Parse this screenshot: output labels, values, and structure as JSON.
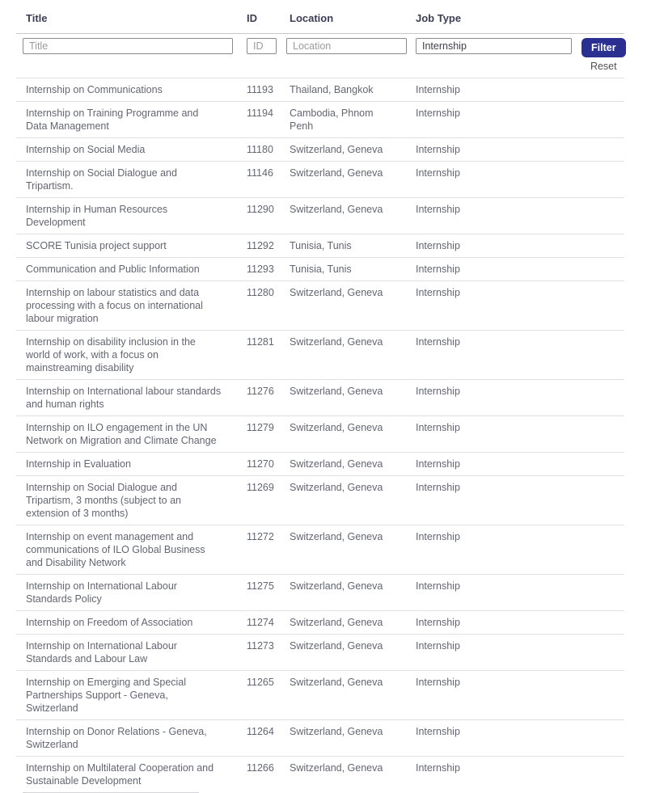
{
  "table": {
    "columns": [
      "Title",
      "ID",
      "Location",
      "Job Type"
    ],
    "filters": {
      "title_placeholder": "Title",
      "id_placeholder": "ID",
      "location_placeholder": "Location",
      "job_type_value": "Internship",
      "filter_button_label": "Filter",
      "reset_label": "Reset"
    },
    "rows": [
      {
        "title": "Internship on Communications",
        "id": "11193",
        "location": "Thailand, Bangkok",
        "job_type": "Internship"
      },
      {
        "title": "Internship on Training Programme and Data Management",
        "id": "11194",
        "location": "Cambodia, Phnom Penh",
        "job_type": "Internship"
      },
      {
        "title": "Internship on Social Media",
        "id": "11180",
        "location": "Switzerland, Geneva",
        "job_type": "Internship"
      },
      {
        "title": "Internship on Social Dialogue and Tripartism.",
        "id": "11146",
        "location": "Switzerland, Geneva",
        "job_type": "Internship"
      },
      {
        "title": "Internship in Human Resources Development",
        "id": "11290",
        "location": "Switzerland, Geneva",
        "job_type": "Internship"
      },
      {
        "title": "SCORE Tunisia project support",
        "id": "11292",
        "location": "Tunisia, Tunis",
        "job_type": "Internship"
      },
      {
        "title": "Communication and Public Information",
        "id": "11293",
        "location": "Tunisia, Tunis",
        "job_type": "Internship"
      },
      {
        "title": "Internship on labour statistics and data processing with a focus on international labour migration",
        "id": "11280",
        "location": "Switzerland, Geneva",
        "job_type": "Internship"
      },
      {
        "title": "Internship on disability inclusion in the world of work, with a focus on mainstreaming disability",
        "id": "11281",
        "location": "Switzerland, Geneva",
        "job_type": "Internship"
      },
      {
        "title": "Internship on International labour standards and human rights",
        "id": "11276",
        "location": "Switzerland, Geneva",
        "job_type": "Internship"
      },
      {
        "title": "Internship on ILO engagement in the UN Network on Migration and Climate Change",
        "id": "11279",
        "location": "Switzerland, Geneva",
        "job_type": "Internship"
      },
      {
        "title": "Internship in Evaluation",
        "id": "11270",
        "location": "Switzerland, Geneva",
        "job_type": "Internship"
      },
      {
        "title": "Internship on Social Dialogue and Tripartism, 3 months (subject to an extension of 3 months)",
        "id": "11269",
        "location": "Switzerland, Geneva",
        "job_type": "Internship"
      },
      {
        "title": "Internship on event management and communications of ILO Global Business and Disability Network",
        "id": "11272",
        "location": "Switzerland, Geneva",
        "job_type": "Internship"
      },
      {
        "title": "Internship on International Labour Standards Policy",
        "id": "11275",
        "location": "Switzerland, Geneva",
        "job_type": "Internship"
      },
      {
        "title": "Internship on Freedom of Association",
        "id": "11274",
        "location": "Switzerland, Geneva",
        "job_type": "Internship"
      },
      {
        "title": "Internship on International Labour Standards and Labour Law",
        "id": "11273",
        "location": "Switzerland, Geneva",
        "job_type": "Internship"
      },
      {
        "title": "Internship on Emerging and Special Partnerships Support - Geneva, Switzerland",
        "id": "11265",
        "location": "Switzerland, Geneva",
        "job_type": "Internship"
      },
      {
        "title": "Internship on Donor Relations - Geneva, Switzerland",
        "id": "11264",
        "location": "Switzerland, Geneva",
        "job_type": "Internship"
      },
      {
        "title": "Internship on Multilateral Cooperation and Sustainable Development",
        "id": "11266",
        "location": "Switzerland, Geneva",
        "job_type": "Internship"
      }
    ]
  },
  "colors": {
    "accent": "#2b2f91",
    "header_text": "#3b3e54",
    "row_text": "#636672",
    "row_divider": "#e1e1e1",
    "header_divider": "#c8c8c8",
    "input_border": "#8a8a8a"
  }
}
